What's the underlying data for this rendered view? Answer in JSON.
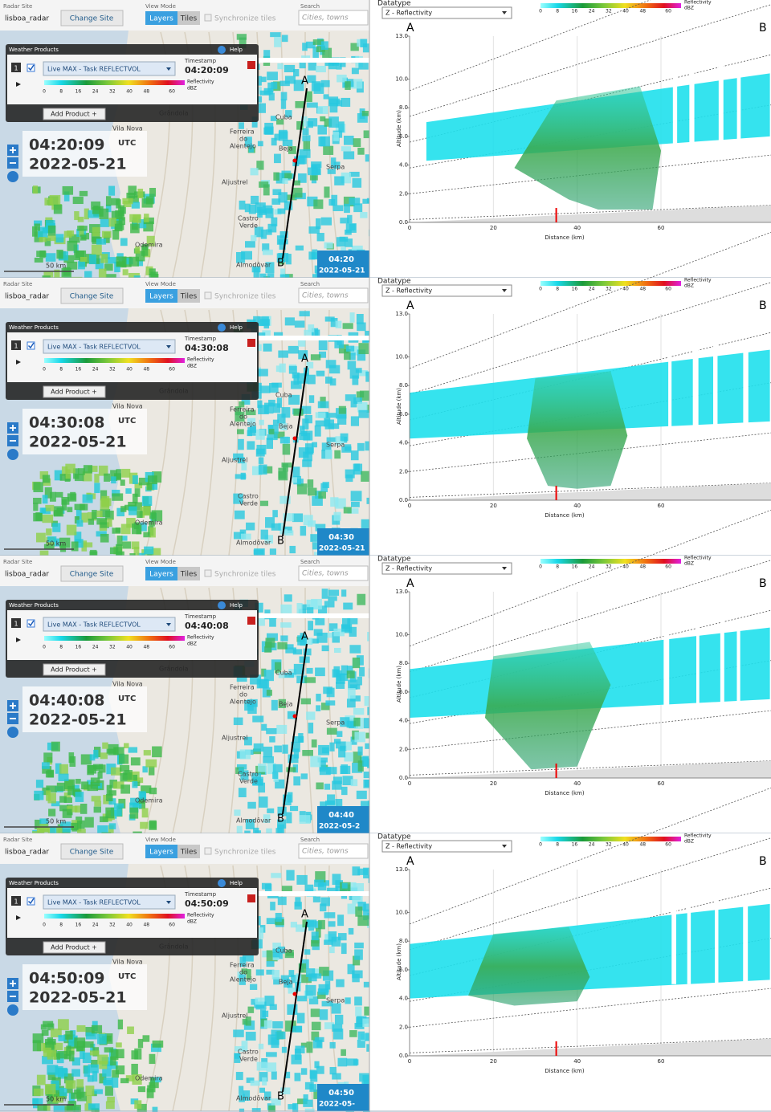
{
  "ui": {
    "radar_site_label": "Radar Site",
    "site": "lisboa_radar",
    "change_site": "Change Site",
    "view_mode": "View Mode",
    "layers": "Layers",
    "tiles": "Tiles",
    "sync": "Synchronize tiles",
    "search": "Search",
    "search_placeholder": "Cities, towns",
    "weather_products": "Weather Products",
    "help": "Help",
    "product_index": "1",
    "product": "Live MAX - Task REFLECTVOL",
    "timestamp": "Timestamp",
    "reflectivity": "Reflectivity",
    "dbz": "dBZ",
    "add_product": "Add Product +",
    "utc": "UTC",
    "scale": "50 km",
    "point_a": "A",
    "point_b": "B",
    "legend_ticks": [
      0,
      8,
      16,
      24,
      32,
      40,
      48,
      60
    ],
    "legend_range": [
      0,
      66
    ],
    "places": [
      "Vila Nova",
      "Grândola",
      "Ferreira",
      "do",
      "Alentejo",
      "Cuba",
      "Beja",
      "Serpa",
      "Aljustrel",
      "Castro",
      "Verde",
      "Odemira",
      "Almodôvar"
    ]
  },
  "cross_section": {
    "datatype_label": "Datatype",
    "datatype": "Z - Reflectivity",
    "y_label": "Altitude (km)",
    "x_label": "Distance (km)",
    "xlim": [
      0,
      86
    ],
    "xticks": [
      0,
      20,
      40,
      60
    ],
    "ylim": [
      0,
      13
    ],
    "yticks": [
      {
        "value": 0,
        "label": "0.0"
      },
      {
        "value": 2,
        "label": "2.0"
      },
      {
        "value": 4,
        "label": "4.0"
      },
      {
        "value": 6,
        "label": "6.0"
      },
      {
        "value": 8,
        "label": "8.0"
      },
      {
        "value": 10,
        "label": "10.0"
      },
      {
        "value": 13,
        "label": "13.0"
      }
    ]
  },
  "panels": [
    {
      "time": "04:20:09",
      "date": "2022-05-21",
      "corner_time": "04:20",
      "corner_date": "2022-05-21"
    },
    {
      "time": "04:30:08",
      "date": "2022-05-21",
      "corner_time": "04:30",
      "corner_date": "2022-05-21"
    },
    {
      "time": "04:40:08",
      "date": "2022-05-21",
      "corner_time": "04:40",
      "corner_date": "2022-05-2"
    },
    {
      "time": "04:50:09",
      "date": "2022-05-21",
      "corner_time": "04:50",
      "corner_date": "2022-05-"
    }
  ]
}
